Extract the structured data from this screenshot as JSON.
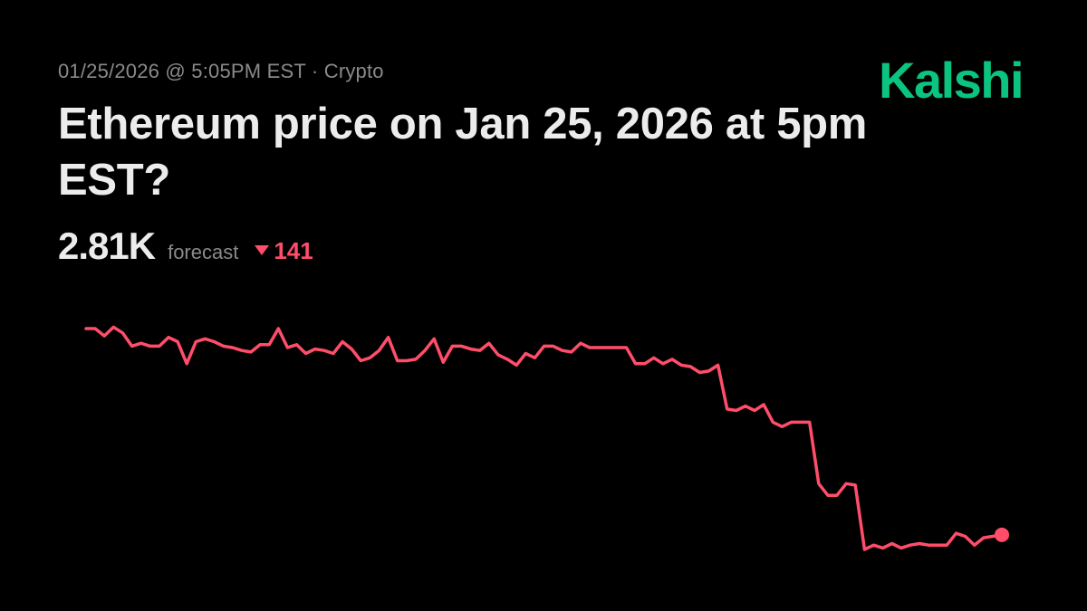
{
  "header": {
    "meta": "01/25/2026 @ 5:05PM EST · Crypto",
    "brand": "Kalshi",
    "title": "Ethereum price on Jan 25, 2026 at 5pm EST?"
  },
  "stats": {
    "value": "2.81K",
    "label": "forecast",
    "delta": "141",
    "delta_direction": "down"
  },
  "colors": {
    "background": "#000000",
    "brand": "#0bc47f",
    "line": "#ff4d6a",
    "text": "#ececec",
    "muted": "#8a8a8a"
  },
  "chart_data": {
    "type": "line",
    "grid": false,
    "axes_visible": false,
    "end_marker": true,
    "series": [
      {
        "values": [
          2951,
          2951,
          2946,
          2952,
          2948,
          2939,
          2941,
          2939,
          2939,
          2945,
          2942,
          2927,
          2942,
          2944,
          2942,
          2939,
          2938,
          2936,
          2935,
          2940,
          2940,
          2951,
          2938,
          2940,
          2934,
          2937,
          2936,
          2934,
          2942,
          2937,
          2929,
          2931,
          2936,
          2945,
          2929,
          2929,
          2930,
          2936,
          2944,
          2928,
          2939,
          2939,
          2937,
          2936,
          2941,
          2933,
          2930,
          2926,
          2934,
          2931,
          2939,
          2939,
          2936,
          2935,
          2941,
          2938,
          2938,
          2938,
          2938,
          2938,
          2927,
          2927,
          2931,
          2927,
          2930,
          2926,
          2925,
          2921,
          2922,
          2926,
          2896,
          2895,
          2898,
          2895,
          2899,
          2887,
          2884,
          2887,
          2887,
          2887,
          2845,
          2837,
          2837,
          2845,
          2844,
          2800,
          2803,
          2801,
          2804,
          2801,
          2803,
          2804,
          2803,
          2803,
          2803,
          2811,
          2809,
          2803,
          2808,
          2809,
          2810
        ]
      }
    ]
  }
}
